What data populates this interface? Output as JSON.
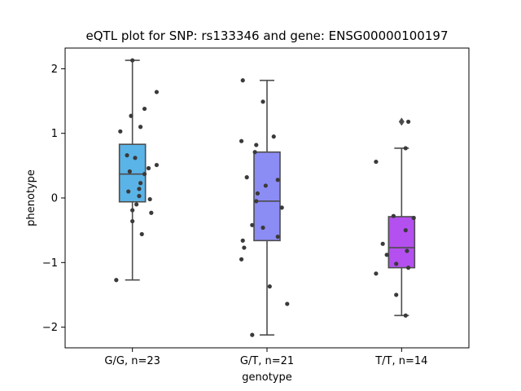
{
  "chart_data": {
    "type": "box",
    "title": "eQTL plot for SNP: rs133346 and gene: ENSG00000100197",
    "xlabel": "genotype",
    "ylabel": "phenotype",
    "ylim": [
      -2.32,
      2.32
    ],
    "yticks": [
      -2,
      -1,
      0,
      1,
      2
    ],
    "yticklabels": [
      "−2",
      "−1",
      "0",
      "1",
      "2"
    ],
    "categories": [
      "G/G, n=23",
      "G/T, n=21",
      "T/T, n=14"
    ],
    "boxes": [
      {
        "category": "G/G, n=23",
        "color": "#5ab4e8",
        "q1": -0.06,
        "median": 0.37,
        "q3": 0.83,
        "whisker_low": -1.27,
        "whisker_high": 2.13,
        "outliers": []
      },
      {
        "category": "G/T, n=21",
        "color": "#8c8cf5",
        "q1": -0.66,
        "median": -0.05,
        "q3": 0.71,
        "whisker_low": -2.12,
        "whisker_high": 1.82,
        "outliers": []
      },
      {
        "category": "T/T, n=14",
        "color": "#b450ef",
        "q1": -1.08,
        "median": -0.77,
        "q3": -0.29,
        "whisker_low": -1.82,
        "whisker_high": 0.77,
        "outliers": [
          1.18
        ]
      }
    ],
    "points": [
      {
        "category": "G/G, n=23",
        "values": [
          2.13,
          1.64,
          1.38,
          1.27,
          1.1,
          1.03,
          0.66,
          0.62,
          0.51,
          0.46,
          0.41,
          0.37,
          0.23,
          0.14,
          0.1,
          0.03,
          -0.02,
          -0.1,
          -0.19,
          -0.23,
          -0.36,
          -0.56,
          -1.27
        ],
        "jitter": [
          0.0,
          0.18,
          0.09,
          -0.01,
          0.06,
          -0.09,
          -0.04,
          0.02,
          0.18,
          0.12,
          -0.02,
          0.09,
          0.06,
          0.05,
          -0.03,
          0.05,
          0.13,
          0.03,
          0.0,
          0.14,
          0.0,
          0.07,
          -0.12
        ]
      },
      {
        "category": "G/T, n=21",
        "values": [
          1.82,
          1.49,
          0.95,
          0.88,
          0.82,
          0.71,
          0.32,
          0.28,
          0.19,
          0.07,
          -0.05,
          -0.15,
          -0.42,
          -0.46,
          -0.6,
          -0.66,
          -0.77,
          -0.95,
          -1.37,
          -1.64,
          -2.12
        ],
        "jitter": [
          -0.18,
          -0.03,
          0.05,
          -0.19,
          -0.08,
          -0.09,
          -0.15,
          0.08,
          -0.01,
          -0.07,
          -0.08,
          0.11,
          -0.11,
          -0.03,
          0.08,
          -0.18,
          -0.17,
          -0.19,
          0.02,
          0.15,
          -0.11
        ]
      },
      {
        "category": "T/T, n=14",
        "values": [
          1.18,
          0.77,
          0.56,
          -0.28,
          -0.31,
          -0.5,
          -0.71,
          -0.82,
          -0.88,
          -1.02,
          -1.08,
          -1.17,
          -1.5,
          -1.82
        ],
        "jitter": [
          0.05,
          0.03,
          -0.19,
          -0.06,
          0.09,
          0.03,
          -0.14,
          0.04,
          -0.11,
          -0.04,
          0.05,
          -0.19,
          -0.04,
          0.03
        ]
      }
    ]
  }
}
